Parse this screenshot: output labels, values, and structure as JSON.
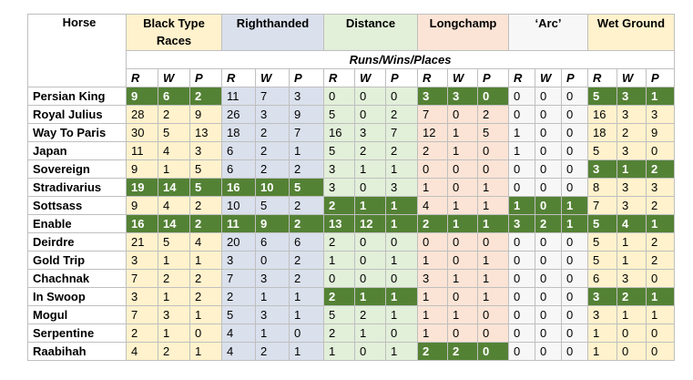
{
  "table": {
    "horse_header": "Horse",
    "groups": [
      "Black Type Races",
      "Righthanded",
      "Distance",
      "Longchamp",
      "‘Arc’",
      "Wet Ground"
    ],
    "subheader": "Runs/Wins/Places",
    "letters": [
      "R",
      "W",
      "P"
    ],
    "rows": [
      {
        "horse": "Persian King",
        "values": [
          [
            9,
            6,
            2
          ],
          [
            11,
            7,
            3
          ],
          [
            0,
            0,
            0
          ],
          [
            3,
            3,
            0
          ],
          [
            0,
            0,
            0
          ],
          [
            5,
            3,
            1
          ]
        ],
        "highlight": [
          0,
          3,
          5
        ]
      },
      {
        "horse": "Royal Julius",
        "values": [
          [
            28,
            2,
            9
          ],
          [
            26,
            3,
            9
          ],
          [
            5,
            0,
            2
          ],
          [
            7,
            0,
            2
          ],
          [
            0,
            0,
            0
          ],
          [
            16,
            3,
            3
          ]
        ],
        "highlight": []
      },
      {
        "horse": "Way To Paris",
        "values": [
          [
            30,
            5,
            13
          ],
          [
            18,
            2,
            7
          ],
          [
            16,
            3,
            7
          ],
          [
            12,
            1,
            5
          ],
          [
            1,
            0,
            0
          ],
          [
            18,
            2,
            9
          ]
        ],
        "highlight": []
      },
      {
        "horse": "Japan",
        "values": [
          [
            11,
            4,
            3
          ],
          [
            6,
            2,
            1
          ],
          [
            5,
            2,
            2
          ],
          [
            2,
            1,
            0
          ],
          [
            1,
            0,
            0
          ],
          [
            5,
            3,
            0
          ]
        ],
        "highlight": []
      },
      {
        "horse": "Sovereign",
        "values": [
          [
            9,
            1,
            5
          ],
          [
            6,
            2,
            2
          ],
          [
            3,
            1,
            1
          ],
          [
            0,
            0,
            0
          ],
          [
            0,
            0,
            0
          ],
          [
            3,
            1,
            2
          ]
        ],
        "highlight": [
          5
        ]
      },
      {
        "horse": "Stradivarius",
        "values": [
          [
            19,
            14,
            5
          ],
          [
            16,
            10,
            5
          ],
          [
            3,
            0,
            3
          ],
          [
            1,
            0,
            1
          ],
          [
            0,
            0,
            0
          ],
          [
            8,
            3,
            3
          ]
        ],
        "highlight": [
          0,
          1
        ]
      },
      {
        "horse": "Sottsass",
        "values": [
          [
            9,
            4,
            2
          ],
          [
            10,
            5,
            2
          ],
          [
            2,
            1,
            1
          ],
          [
            4,
            1,
            1
          ],
          [
            1,
            0,
            1
          ],
          [
            7,
            3,
            2
          ]
        ],
        "highlight": [
          2,
          4
        ]
      },
      {
        "horse": "Enable",
        "values": [
          [
            16,
            14,
            2
          ],
          [
            11,
            9,
            2
          ],
          [
            13,
            12,
            1
          ],
          [
            2,
            1,
            1
          ],
          [
            3,
            2,
            1
          ],
          [
            5,
            4,
            1
          ]
        ],
        "highlight": [
          0,
          1,
          2,
          3,
          4,
          5
        ]
      },
      {
        "horse": "Deirdre",
        "values": [
          [
            21,
            5,
            4
          ],
          [
            20,
            6,
            6
          ],
          [
            2,
            0,
            0
          ],
          [
            0,
            0,
            0
          ],
          [
            0,
            0,
            0
          ],
          [
            5,
            1,
            2
          ]
        ],
        "highlight": []
      },
      {
        "horse": "Gold Trip",
        "values": [
          [
            3,
            1,
            1
          ],
          [
            3,
            0,
            2
          ],
          [
            1,
            0,
            1
          ],
          [
            1,
            0,
            1
          ],
          [
            0,
            0,
            0
          ],
          [
            5,
            1,
            2
          ]
        ],
        "highlight": []
      },
      {
        "horse": "Chachnak",
        "values": [
          [
            7,
            2,
            2
          ],
          [
            7,
            3,
            2
          ],
          [
            0,
            0,
            0
          ],
          [
            3,
            1,
            1
          ],
          [
            0,
            0,
            0
          ],
          [
            6,
            3,
            0
          ]
        ],
        "highlight": []
      },
      {
        "horse": "In Swoop",
        "values": [
          [
            3,
            1,
            2
          ],
          [
            2,
            1,
            1
          ],
          [
            2,
            1,
            1
          ],
          [
            1,
            0,
            1
          ],
          [
            0,
            0,
            0
          ],
          [
            3,
            2,
            1
          ]
        ],
        "highlight": [
          2,
          5
        ]
      },
      {
        "horse": "Mogul",
        "values": [
          [
            7,
            3,
            1
          ],
          [
            5,
            3,
            1
          ],
          [
            5,
            2,
            1
          ],
          [
            1,
            1,
            0
          ],
          [
            0,
            0,
            0
          ],
          [
            3,
            1,
            1
          ]
        ],
        "highlight": []
      },
      {
        "horse": "Serpentine",
        "values": [
          [
            2,
            1,
            0
          ],
          [
            4,
            1,
            0
          ],
          [
            2,
            1,
            0
          ],
          [
            1,
            0,
            0
          ],
          [
            0,
            0,
            0
          ],
          [
            1,
            0,
            0
          ]
        ],
        "highlight": []
      },
      {
        "horse": "Raabihah",
        "values": [
          [
            4,
            2,
            1
          ],
          [
            4,
            2,
            1
          ],
          [
            1,
            0,
            1
          ],
          [
            2,
            2,
            0
          ],
          [
            0,
            0,
            0
          ],
          [
            1,
            0,
            0
          ]
        ],
        "highlight": [
          3
        ]
      }
    ]
  }
}
